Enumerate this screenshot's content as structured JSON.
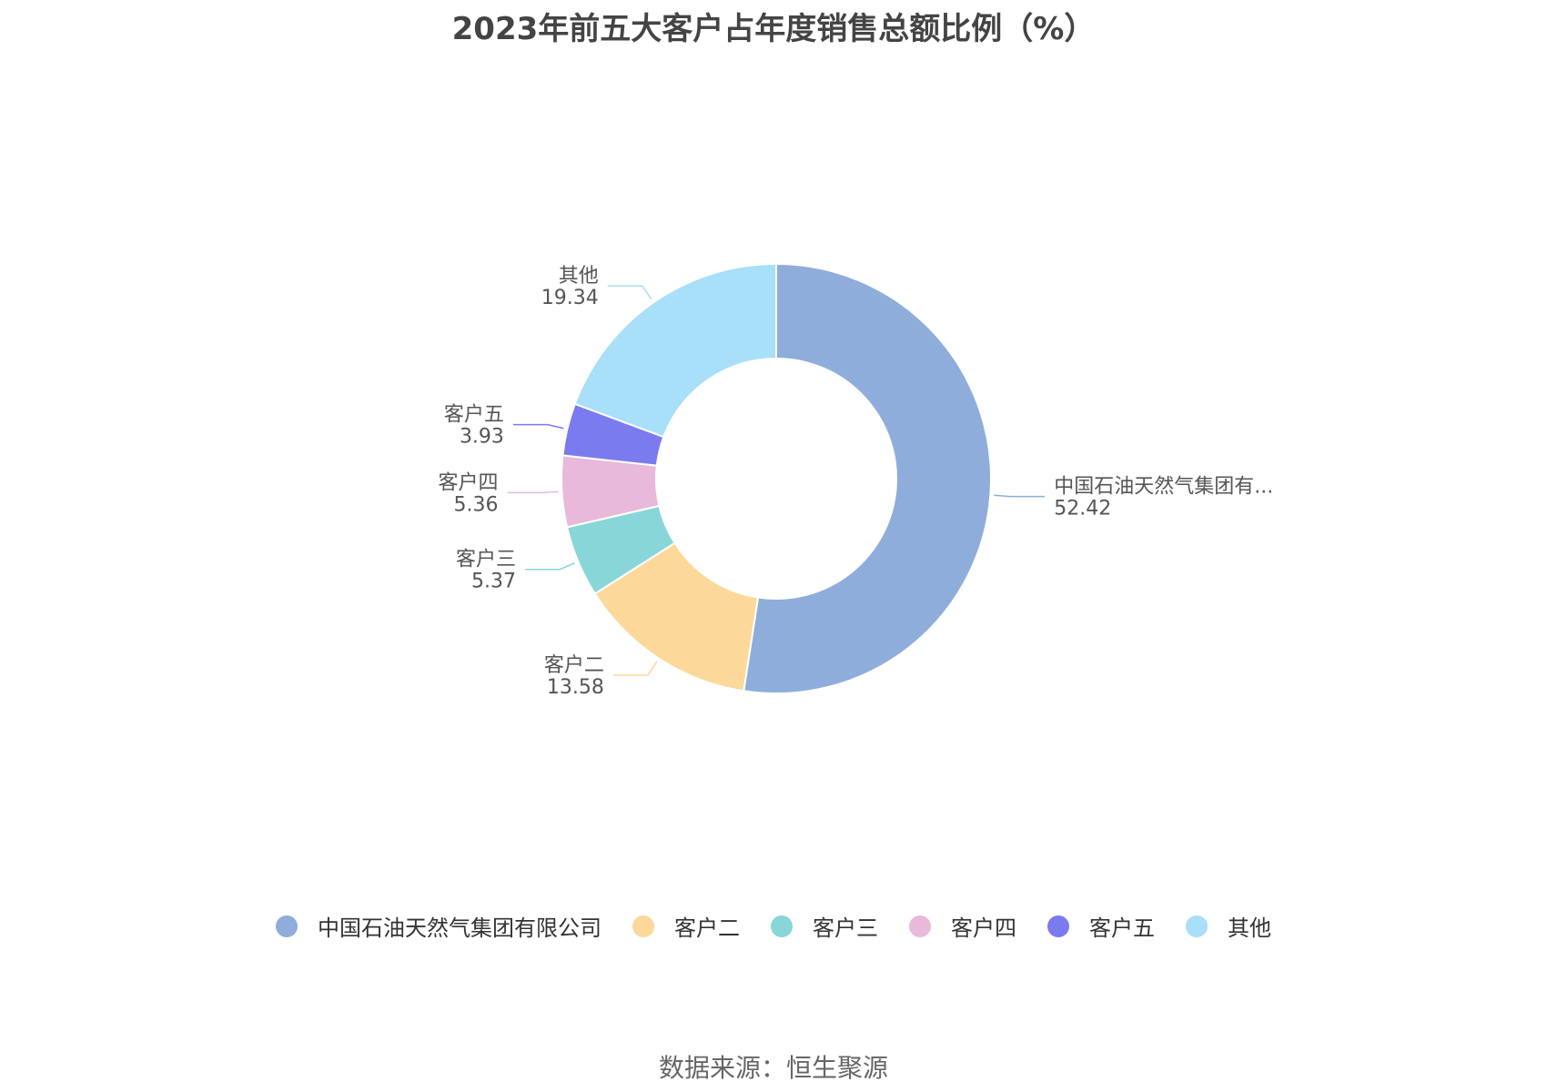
{
  "chart_data": {
    "type": "pie",
    "variant": "donut",
    "title": "2023年前五大客户占年度销售总额比例（%）",
    "categories": [
      "中国石油天然气集团有限公司",
      "客户二",
      "客户三",
      "客户四",
      "客户五",
      "其他"
    ],
    "slice_labels": [
      "中国石油天然气集团有...",
      "客户二",
      "客户三",
      "客户四",
      "客户五",
      "其他"
    ],
    "values": [
      52.42,
      13.58,
      5.37,
      5.36,
      3.93,
      19.34
    ],
    "value_labels": [
      "52.42",
      "13.58",
      "5.37",
      "5.36",
      "3.93",
      "19.34"
    ],
    "colors": [
      "#8eadda",
      "#fdd89b",
      "#88d6d8",
      "#e8b9da",
      "#7b7bf0",
      "#a8dff9"
    ],
    "legend_position": "bottom",
    "source": "数据来源：恒生聚源"
  }
}
